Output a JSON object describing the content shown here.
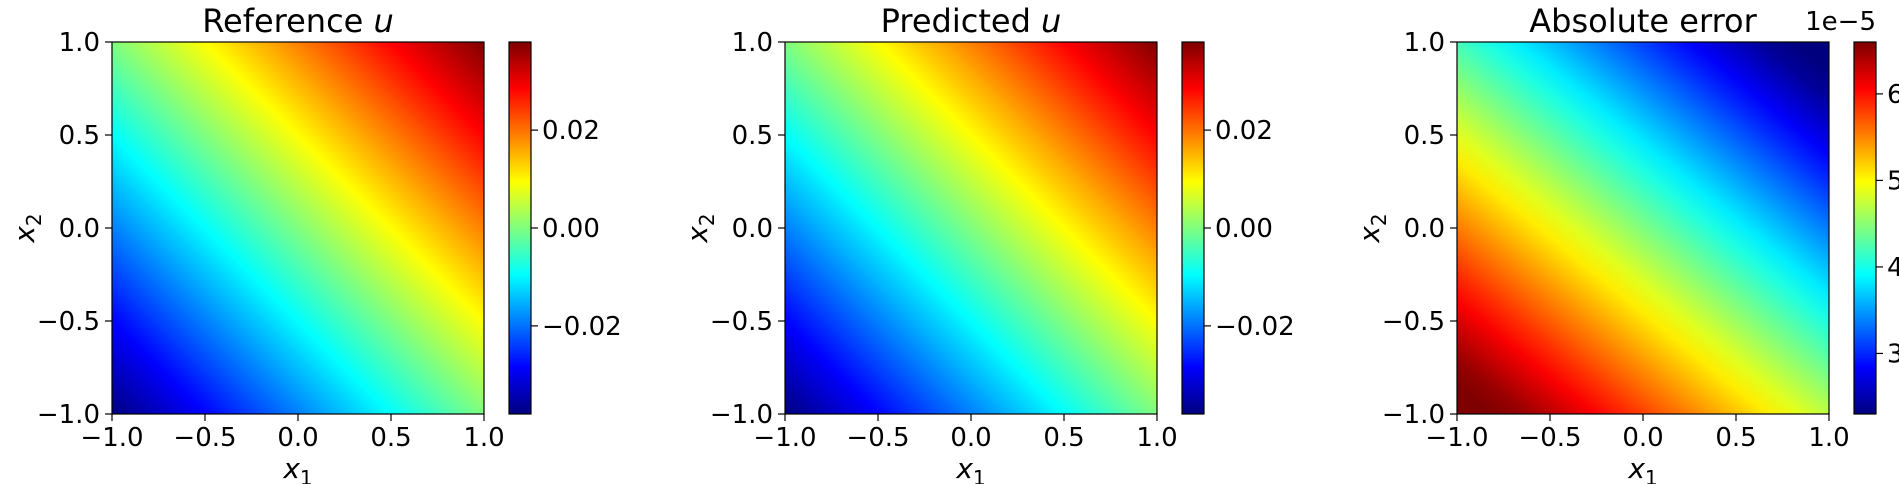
{
  "colormap": {
    "name": "jet",
    "stops": [
      "#00007f",
      "#0000ff",
      "#007fff",
      "#00ffff",
      "#7fff7f",
      "#ffff00",
      "#ff7f00",
      "#ff0000",
      "#7f0000"
    ]
  },
  "chart_data": [
    {
      "type": "heatmap",
      "title": "Reference u",
      "title_main": "Reference ",
      "title_var": "u",
      "xlabel": "x1",
      "ylabel": "x2",
      "xlim": [
        -1.0,
        1.0
      ],
      "ylim": [
        -1.0,
        1.0
      ],
      "xticks": [
        "−1.0",
        "−0.5",
        "0.0",
        "0.5",
        "1.0"
      ],
      "xtick_values": [
        -1.0,
        -0.5,
        0.0,
        0.5,
        1.0
      ],
      "yticks": [
        "−1.0",
        "−0.5",
        "0.0",
        "0.5",
        "1.0"
      ],
      "ytick_values": [
        -1.0,
        -0.5,
        0.0,
        0.5,
        1.0
      ],
      "field": "linear increase along x1 + x2",
      "corner_values": {
        "bottom_left": -0.038,
        "top_right": 0.038,
        "top_left": 0.0,
        "bottom_right": 0.0
      },
      "colorbar": {
        "range": [
          -0.038,
          0.038
        ],
        "ticks": [
          "−0.02",
          "0.00",
          "0.02"
        ],
        "tick_values": [
          -0.02,
          0.0,
          0.02
        ],
        "offset": ""
      }
    },
    {
      "type": "heatmap",
      "title": "Predicted u",
      "title_main": "Predicted ",
      "title_var": "u",
      "xlabel": "x1",
      "ylabel": "x2",
      "xlim": [
        -1.0,
        1.0
      ],
      "ylim": [
        -1.0,
        1.0
      ],
      "xticks": [
        "−1.0",
        "−0.5",
        "0.0",
        "0.5",
        "1.0"
      ],
      "xtick_values": [
        -1.0,
        -0.5,
        0.0,
        0.5,
        1.0
      ],
      "yticks": [
        "−1.0",
        "−0.5",
        "0.0",
        "0.5",
        "1.0"
      ],
      "ytick_values": [
        -1.0,
        -0.5,
        0.0,
        0.5,
        1.0
      ],
      "field": "linear increase along x1 + x2",
      "corner_values": {
        "bottom_left": -0.038,
        "top_right": 0.038,
        "top_left": 0.0,
        "bottom_right": 0.0
      },
      "colorbar": {
        "range": [
          -0.038,
          0.038
        ],
        "ticks": [
          "−0.02",
          "0.00",
          "0.02"
        ],
        "tick_values": [
          -0.02,
          0.0,
          0.02
        ],
        "offset": ""
      }
    },
    {
      "type": "heatmap",
      "title": "Absolute error",
      "title_main": "Absolute error",
      "title_var": "",
      "xlabel": "x1",
      "ylabel": "x2",
      "xlim": [
        -1.0,
        1.0
      ],
      "ylim": [
        -1.0,
        1.0
      ],
      "xticks": [
        "−1.0",
        "−0.5",
        "0.0",
        "0.5",
        "1.0"
      ],
      "xtick_values": [
        -1.0,
        -0.5,
        0.0,
        0.5,
        1.0
      ],
      "yticks": [
        "−1.0",
        "−0.5",
        "0.0",
        "0.5",
        "1.0"
      ],
      "ytick_values": [
        -1.0,
        -0.5,
        0.0,
        0.5,
        1.0
      ],
      "field": "linear decrease along x1 + x2",
      "corner_values": {
        "bottom_left": 6.6e-05,
        "top_right": 2.3e-05,
        "top_left": 3.9e-05,
        "bottom_right": 4.4e-05
      },
      "colorbar": {
        "range": [
          2.3e-05,
          6.6e-05
        ],
        "ticks": [
          "3",
          "4",
          "5",
          "6"
        ],
        "tick_values": [
          3e-05,
          4e-05,
          5e-05,
          6e-05
        ],
        "offset": "1e−5"
      }
    }
  ]
}
